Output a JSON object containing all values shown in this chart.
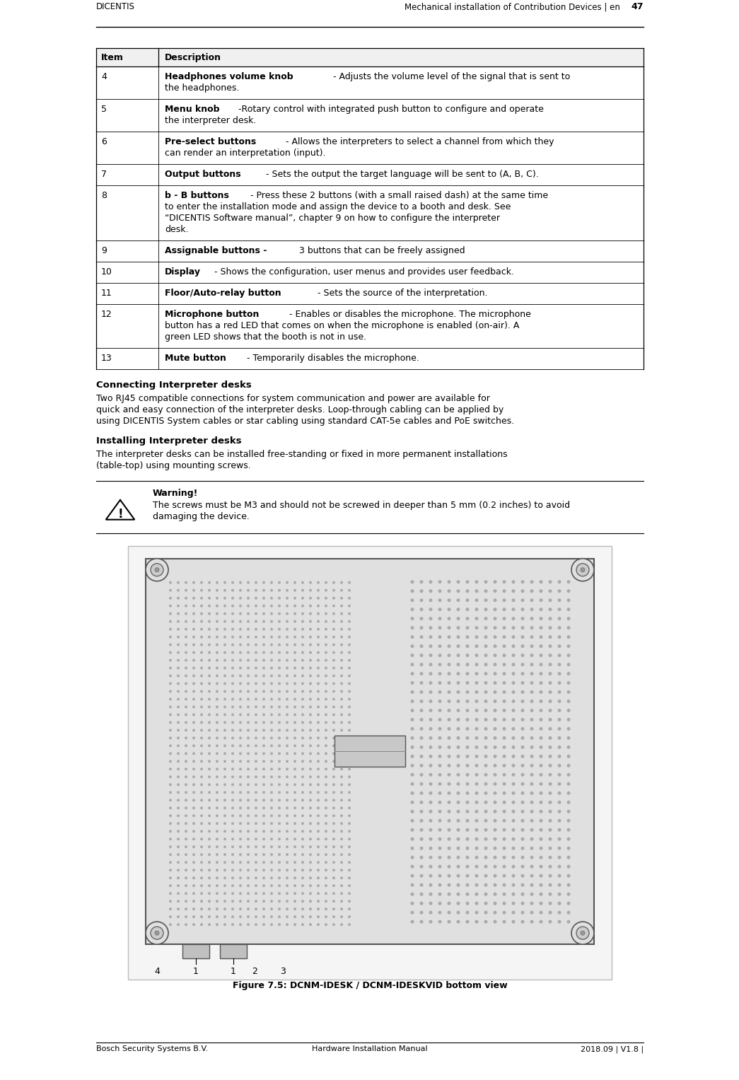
{
  "header_left": "DICENTIS",
  "header_right": "Mechanical installation of Contribution Devices | en",
  "header_page": "47",
  "footer_left": "Bosch Security Systems B.V.",
  "footer_center": "Hardware Installation Manual",
  "footer_right": "2018.09 | V1.8 |",
  "table_col1_header": "Item",
  "table_col2_header": "Description",
  "rows": [
    {
      "item": "4",
      "bold": "Headphones volume knob",
      "normal": " - Adjusts the volume level of the signal that is sent to\nthe headphones.",
      "nlines": 2
    },
    {
      "item": "5",
      "bold": "Menu knob",
      "normal": " -Rotary control with integrated push button to configure and operate\nthe interpreter desk.",
      "nlines": 2
    },
    {
      "item": "6",
      "bold": "Pre-select buttons",
      "normal": " - Allows the interpreters to select a channel from which they\ncan render an interpretation (input).",
      "nlines": 2
    },
    {
      "item": "7",
      "bold": "Output buttons",
      "normal": " - Sets the output the target language will be sent to (A, B, C).",
      "nlines": 1
    },
    {
      "item": "8",
      "bold": "b - B buttons",
      "normal": " - Press these 2 buttons (with a small raised dash) at the same time\nto enter the installation mode and assign the device to a booth and desk. See\n“DICENTIS Software manual”, chapter 9 on how to configure the interpreter\ndesk.",
      "nlines": 4
    },
    {
      "item": "9",
      "bold": "Assignable buttons -",
      "normal": " 3 buttons that can be freely assigned",
      "nlines": 1
    },
    {
      "item": "10",
      "bold": "Display",
      "normal": " - Shows the configuration, user menus and provides user feedback.",
      "nlines": 1
    },
    {
      "item": "11",
      "bold": "Floor/Auto-relay button",
      "normal": " - Sets the source of the interpretation.",
      "nlines": 1
    },
    {
      "item": "12",
      "bold": "Microphone button",
      "normal": " - Enables or disables the microphone. The microphone\nbutton has a red LED that comes on when the microphone is enabled (on-air). A\ngreen LED shows that the booth is not in use.",
      "nlines": 3
    },
    {
      "item": "13",
      "bold": "Mute button",
      "normal": " - Temporarily disables the microphone.",
      "nlines": 1
    }
  ],
  "section1_title": "Connecting Interpreter desks",
  "section1_lines": [
    "Two RJ45 compatible connections for system communication and power are available for",
    "quick and easy connection of the interpreter desks. Loop-through cabling can be applied by",
    "using DICENTIS System cables or star cabling using standard CAT-5e cables and PoE switches."
  ],
  "section2_title": "Installing Interpreter desks",
  "section2_lines": [
    "The interpreter desks can be installed free-standing or fixed in more permanent installations",
    "(table-top) using mounting screws."
  ],
  "warning_title": "Warning!",
  "warning_lines": [
    "The screws must be M3 and should not be screwed in deeper than 5 mm (0.2 inches) to avoid",
    "damaging the device."
  ],
  "figure_caption": "Figure 7.5: DCNM-IDESK / DCNM-IDESKVID bottom view",
  "figure_labels": [
    "4",
    "1",
    "1",
    "2",
    "3"
  ],
  "bg_color": "#ffffff",
  "text_color": "#000000",
  "line_color": "#000000",
  "table_header_bg": "#f0f0f0"
}
